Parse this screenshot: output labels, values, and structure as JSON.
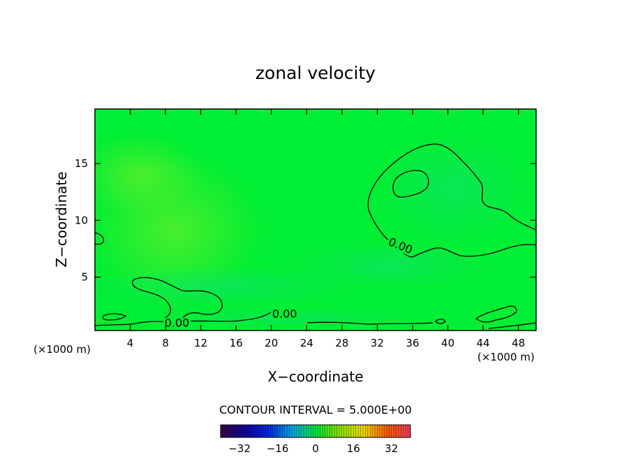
{
  "chart_data": {
    "type": "contour",
    "title": "zonal velocity",
    "xlabel": "X−coordinate",
    "ylabel": "Z−coordinate",
    "x_units_left": "(×1000 m)",
    "x_units_right": "(×1000 m)",
    "xlim": [
      0,
      50
    ],
    "ylim": [
      0.3,
      19.8
    ],
    "x_ticks": [
      4,
      8,
      12,
      16,
      20,
      24,
      28,
      32,
      36,
      40,
      44,
      48
    ],
    "y_ticks": [
      5,
      10,
      15
    ],
    "contour_labels": [
      {
        "text": "0.00",
        "x": 34.5,
        "y": 7.5
      },
      {
        "text": "0.00",
        "x": 21.5,
        "y": 1.5
      },
      {
        "text": "0.00",
        "x": 9.3,
        "y": 0.7
      }
    ],
    "contour_interval_text": "CONTOUR INTERVAL = 5.000E+00",
    "colorbar": {
      "min": -40,
      "max": 40,
      "tick_values": [
        -32,
        -16,
        0,
        16,
        32
      ],
      "tick_labels": [
        "−32",
        "−16",
        "0",
        "16",
        "32"
      ]
    },
    "colors": {
      "field_base": "#00ee33",
      "field_light": "#33f030",
      "field_cool": "#14e85a",
      "contour_line": "#000000"
    }
  }
}
